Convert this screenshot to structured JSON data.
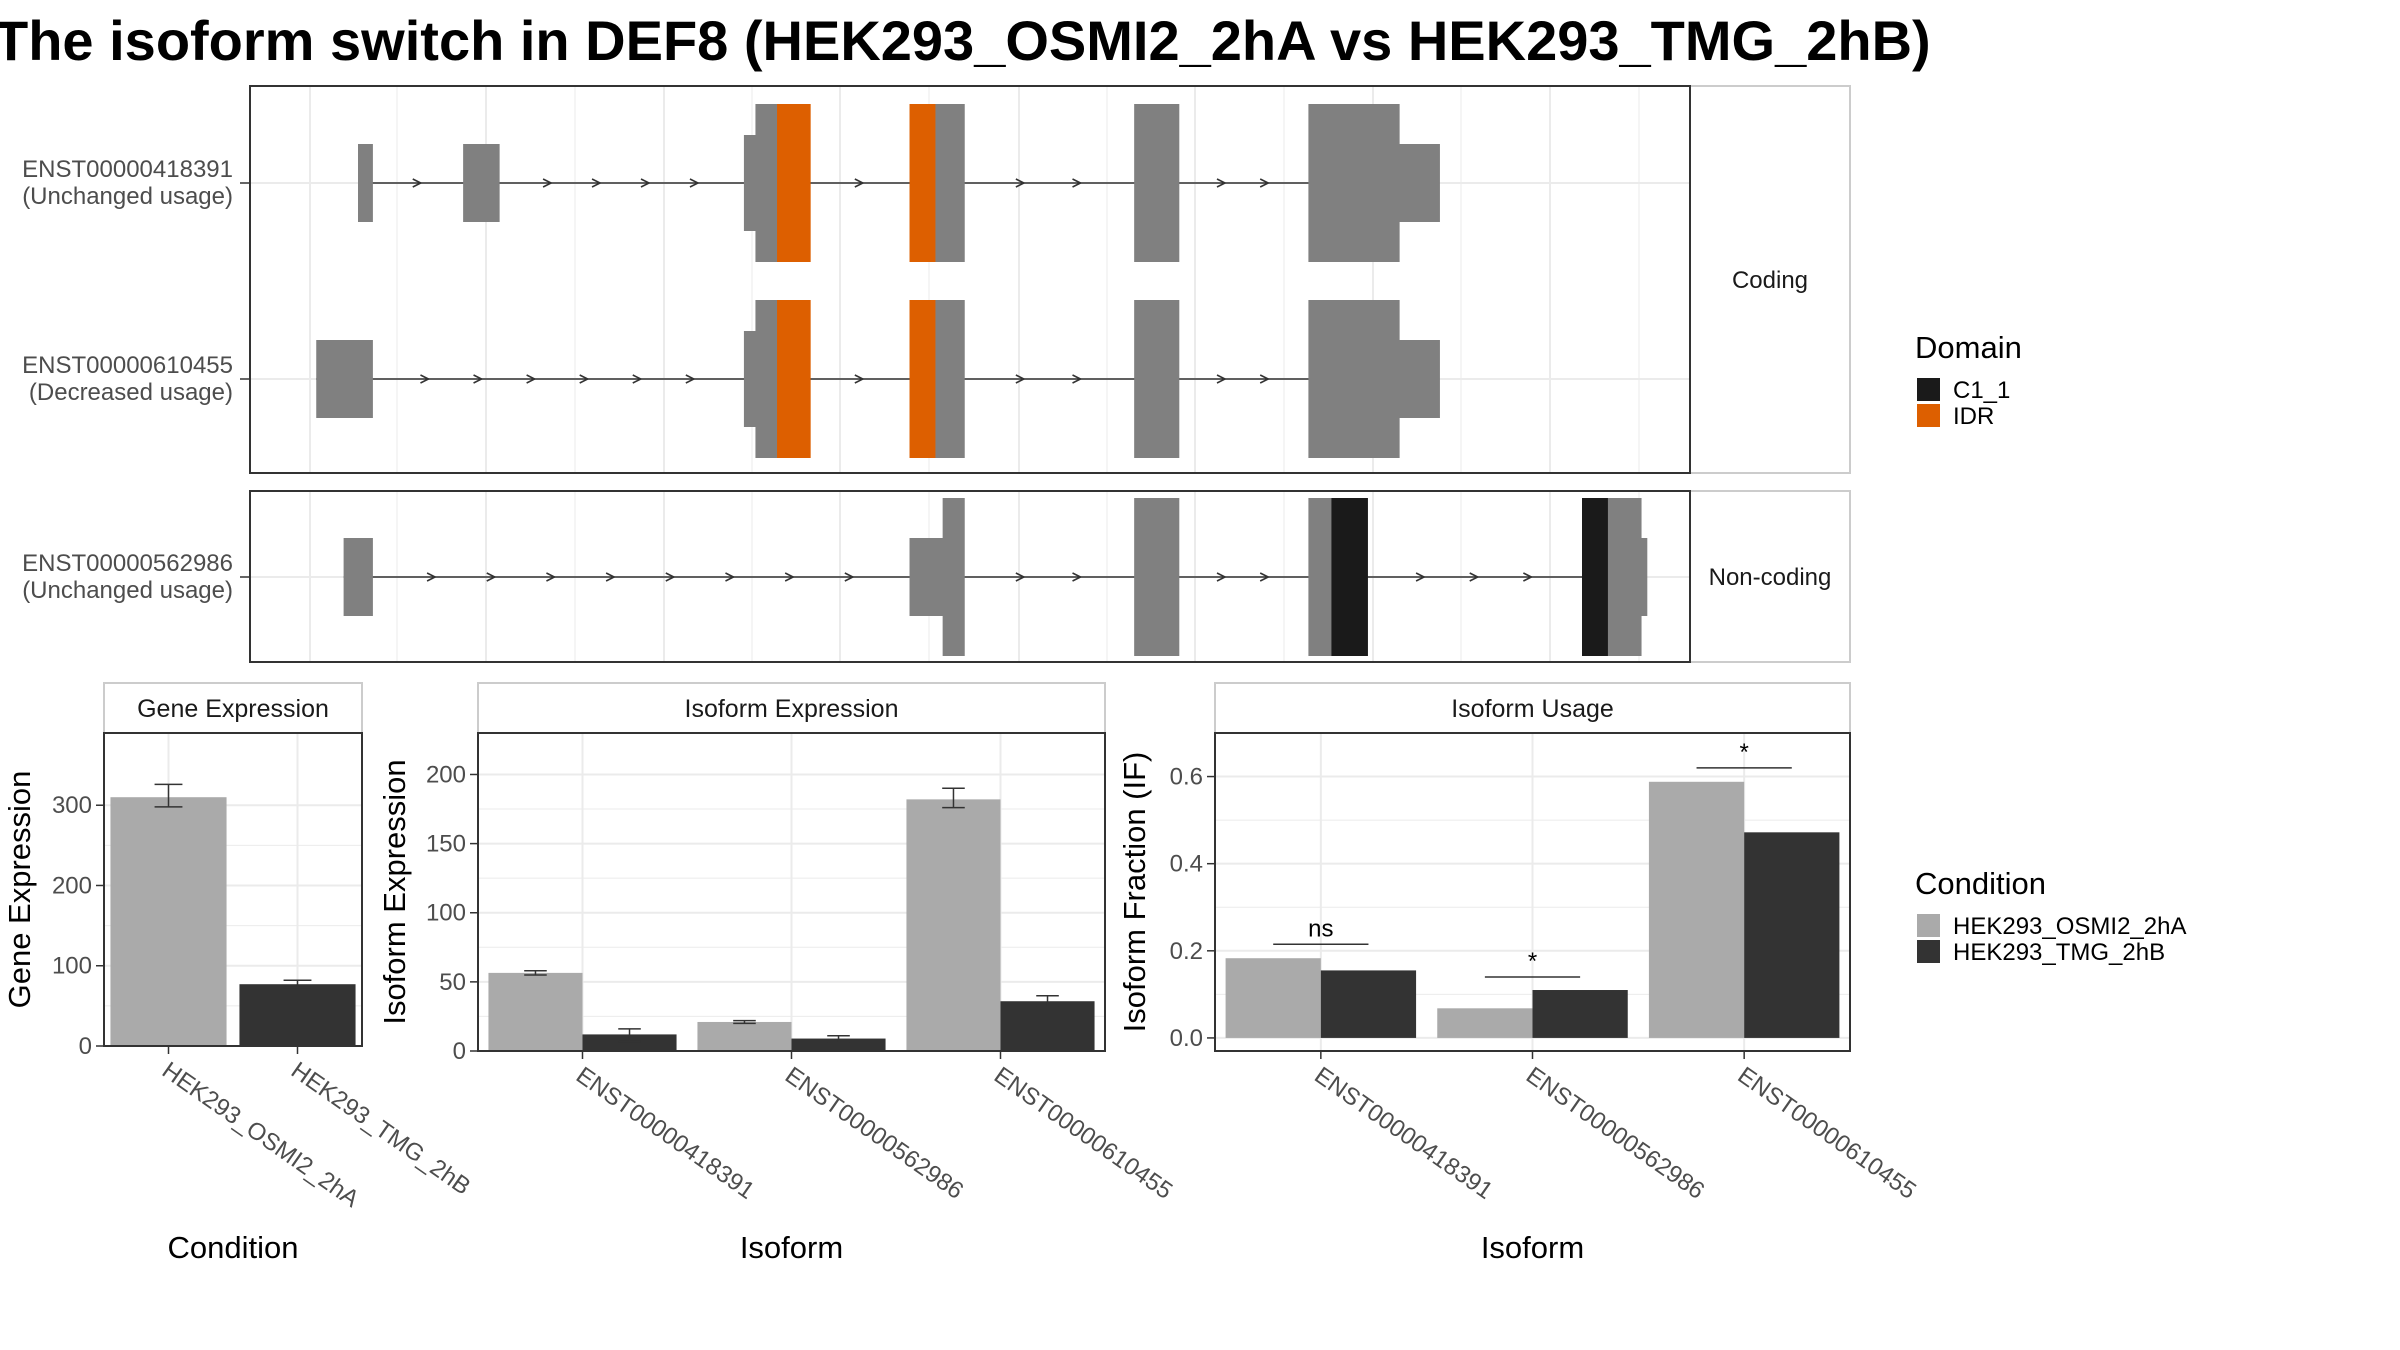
{
  "title": "The isoform switch in DEF8 (HEK293_OSMI2_2hA vs HEK293_TMG_2hB)",
  "colors": {
    "exon": "#808080",
    "c1_1": "#1a1a1a",
    "idr": "#dd5f00",
    "cond_a": "#aaaaaa",
    "cond_b": "#333333",
    "grid": "#ebebeb"
  },
  "chart_data": [
    {
      "type": "gene-structure",
      "groups": [
        {
          "label": "Coding",
          "isoforms": [
            {
              "id": "ENST00000418391",
              "usage": "(Unchanged usage)",
              "exons": [
                {
                  "start": 0.075,
                  "end": 0.085,
                  "h": "utr"
                },
                {
                  "start": 0.148,
                  "end": 0.173,
                  "h": "utr"
                },
                {
                  "start": 0.343,
                  "end": 0.351,
                  "h": "mid"
                },
                {
                  "start": 0.351,
                  "end": 0.366,
                  "h": "cds"
                },
                {
                  "start": 0.366,
                  "end": 0.389,
                  "h": "cds",
                  "domain": "IDR"
                },
                {
                  "start": 0.458,
                  "end": 0.476,
                  "h": "cds",
                  "domain": "IDR"
                },
                {
                  "start": 0.476,
                  "end": 0.496,
                  "h": "cds"
                },
                {
                  "start": 0.614,
                  "end": 0.645,
                  "h": "cds"
                },
                {
                  "start": 0.735,
                  "end": 0.798,
                  "h": "cds"
                },
                {
                  "start": 0.798,
                  "end": 0.826,
                  "h": "utr"
                }
              ]
            },
            {
              "id": "ENST00000610455",
              "usage": "(Decreased usage)",
              "exons": [
                {
                  "start": 0.046,
                  "end": 0.085,
                  "h": "utr"
                },
                {
                  "start": 0.343,
                  "end": 0.351,
                  "h": "mid"
                },
                {
                  "start": 0.351,
                  "end": 0.366,
                  "h": "cds"
                },
                {
                  "start": 0.366,
                  "end": 0.389,
                  "h": "cds",
                  "domain": "IDR"
                },
                {
                  "start": 0.458,
                  "end": 0.476,
                  "h": "cds",
                  "domain": "IDR"
                },
                {
                  "start": 0.476,
                  "end": 0.496,
                  "h": "cds"
                },
                {
                  "start": 0.614,
                  "end": 0.645,
                  "h": "cds"
                },
                {
                  "start": 0.735,
                  "end": 0.798,
                  "h": "cds"
                },
                {
                  "start": 0.798,
                  "end": 0.826,
                  "h": "utr"
                }
              ]
            }
          ]
        },
        {
          "label": "Non-coding",
          "isoforms": [
            {
              "id": "ENST00000562986",
              "usage": "(Unchanged usage)",
              "exons": [
                {
                  "start": 0.065,
                  "end": 0.085,
                  "h": "utr"
                },
                {
                  "start": 0.458,
                  "end": 0.481,
                  "h": "utr"
                },
                {
                  "start": 0.481,
                  "end": 0.496,
                  "h": "cds"
                },
                {
                  "start": 0.614,
                  "end": 0.645,
                  "h": "cds"
                },
                {
                  "start": 0.735,
                  "end": 0.751,
                  "h": "cds"
                },
                {
                  "start": 0.751,
                  "end": 0.776,
                  "h": "cds",
                  "domain": "C1_1"
                },
                {
                  "start": 0.925,
                  "end": 0.943,
                  "h": "cds",
                  "domain": "C1_1"
                },
                {
                  "start": 0.943,
                  "end": 0.966,
                  "h": "cds"
                },
                {
                  "start": 0.966,
                  "end": 0.97,
                  "h": "utr"
                }
              ]
            }
          ]
        }
      ],
      "legend": {
        "title": "Domain",
        "items": [
          {
            "label": "C1_1",
            "color": "#1a1a1a"
          },
          {
            "label": "IDR",
            "color": "#dd5f00"
          }
        ]
      }
    },
    {
      "type": "bar",
      "title": "Gene Expression",
      "xlabel": "Condition",
      "ylabel": "Gene Expression",
      "ylim": [
        0,
        390
      ],
      "yticks": [
        0,
        100,
        200,
        300
      ],
      "categories": [
        "HEK293_OSMI2_2hA",
        "HEK293_TMG_2hB"
      ],
      "bars": [
        {
          "category": "HEK293_OSMI2_2hA",
          "condition": "HEK293_OSMI2_2hA",
          "value": 310,
          "err_low": 298,
          "err_high": 326
        },
        {
          "category": "HEK293_TMG_2hB",
          "condition": "HEK293_TMG_2hB",
          "value": 77,
          "err_low": 73,
          "err_high": 82
        }
      ]
    },
    {
      "type": "bar",
      "title": "Isoform Expression",
      "xlabel": "Isoform",
      "ylabel": "Isoform Expression",
      "ylim": [
        0,
        230
      ],
      "yticks": [
        0,
        50,
        100,
        150,
        200
      ],
      "categories": [
        "ENST00000418391",
        "ENST00000562986",
        "ENST00000610455"
      ],
      "series": [
        {
          "name": "HEK293_OSMI2_2hA",
          "values": [
            56.5,
            21,
            182
          ],
          "err_low": [
            55,
            20,
            176
          ],
          "err_high": [
            58,
            22,
            190
          ]
        },
        {
          "name": "HEK293_TMG_2hB",
          "values": [
            12,
            9,
            36
          ],
          "err_low": [
            7,
            6,
            32
          ],
          "err_high": [
            16,
            11,
            40
          ]
        }
      ]
    },
    {
      "type": "bar",
      "title": "Isoform Usage",
      "xlabel": "Isoform",
      "ylabel": "Isoform Fraction (IF)",
      "ylim": [
        -0.03,
        0.7
      ],
      "yticks": [
        "0.0",
        "0.2",
        "0.4",
        "0.6"
      ],
      "categories": [
        "ENST00000418391",
        "ENST00000562986",
        "ENST00000610455"
      ],
      "series": [
        {
          "name": "HEK293_OSMI2_2hA",
          "values": [
            0.183,
            0.068,
            0.588
          ]
        },
        {
          "name": "HEK293_TMG_2hB",
          "values": [
            0.155,
            0.11,
            0.472
          ]
        }
      ],
      "significance": [
        {
          "category": "ENST00000418391",
          "label": "ns",
          "y": 0.215
        },
        {
          "category": "ENST00000562986",
          "label": "*",
          "y": 0.14
        },
        {
          "category": "ENST00000610455",
          "label": "*",
          "y": 0.62
        }
      ]
    }
  ],
  "condition_legend": {
    "title": "Condition",
    "items": [
      {
        "label": "HEK293_OSMI2_2hA",
        "color": "#aaaaaa"
      },
      {
        "label": "HEK293_TMG_2hB",
        "color": "#333333"
      }
    ]
  }
}
